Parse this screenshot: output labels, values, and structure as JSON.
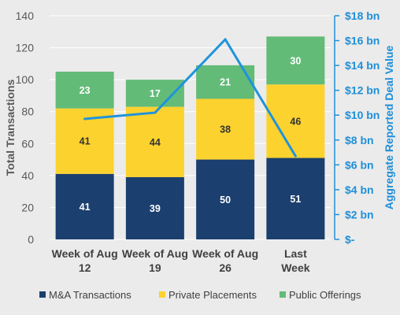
{
  "chart_data": {
    "type": "bar",
    "stacked": true,
    "categories": [
      [
        "Week of Aug",
        "12"
      ],
      [
        "Week of Aug",
        "19"
      ],
      [
        "Week of Aug",
        "26"
      ],
      [
        "Last",
        "Week"
      ]
    ],
    "series": [
      {
        "name": "M&A Transactions",
        "values": [
          41,
          39,
          50,
          51
        ],
        "color": "#1b3f6e",
        "label_color": "#ffffff"
      },
      {
        "name": "Private Placements",
        "values": [
          41,
          44,
          38,
          46
        ],
        "color": "#fcd22e",
        "label_color": "#333333"
      },
      {
        "name": "Public Offerings",
        "values": [
          23,
          17,
          21,
          30
        ],
        "color": "#63bb78",
        "label_color": "#ffffff"
      }
    ],
    "line_series": {
      "name": "Aggregate Reported Deal Value",
      "values": [
        9.7,
        10.2,
        16.1,
        6.7
      ],
      "color": "#1f93dc",
      "unit": "bn"
    },
    "ylabel": "Total Transactions",
    "y2label": "Aggregate Reported Deal Value",
    "ylim": [
      0,
      140
    ],
    "y2lim": [
      0,
      18
    ],
    "yticks": [
      "0",
      "20",
      "40",
      "60",
      "80",
      "100",
      "120",
      "140"
    ],
    "y2ticks": [
      "$-",
      "$2 bn",
      "$4 bn",
      "$6 bn",
      "$8 bn",
      "$10 bn",
      "$12 bn",
      "$14 bn",
      "$16 bn",
      "$18 bn"
    ],
    "grid": true,
    "legend_position": "bottom"
  }
}
